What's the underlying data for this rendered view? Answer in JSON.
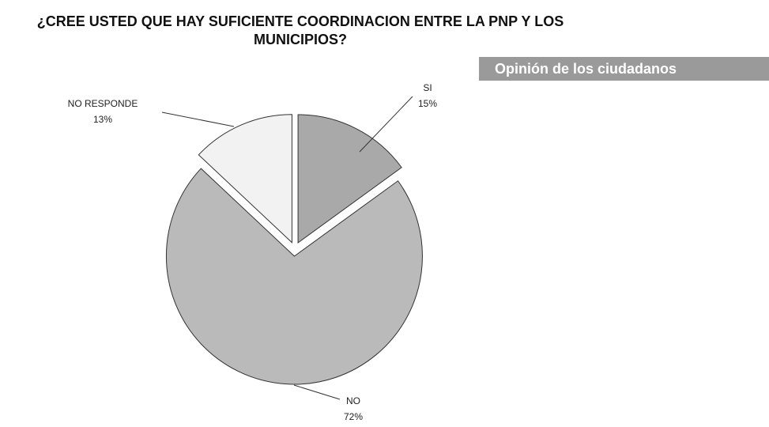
{
  "chart_data": {
    "type": "pie",
    "title": "¿CREE USTED QUE HAY SUFICIENTE COORDINACION ENTRE LA PNP Y LOS MUNICIPIOS?",
    "annotation": "Opinión de los ciudadanos",
    "categories": [
      "SI",
      "NO",
      "NO RESPONDE"
    ],
    "values": [
      15,
      72,
      13
    ],
    "value_labels": [
      "15%",
      "72%",
      "13%"
    ],
    "colors": [
      "#a9a9a9",
      "#bababa",
      "#f2f2f2"
    ]
  }
}
